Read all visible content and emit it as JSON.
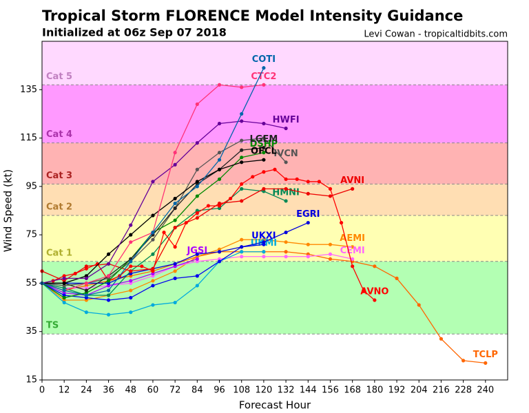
{
  "chart_data": {
    "type": "line",
    "title": "Tropical Storm FLORENCE Model Intensity Guidance",
    "subtitle": "Initialized at 06z Sep 07 2018",
    "credit": "Levi Cowan - tropicaltidbits.com",
    "x_label": "Forecast Hour",
    "y_label": "Wind Speed (kt)",
    "xlim": [
      0,
      252
    ],
    "ylim": [
      15,
      155
    ],
    "xticks": [
      0,
      12,
      24,
      36,
      48,
      60,
      72,
      84,
      96,
      108,
      120,
      132,
      144,
      156,
      168,
      180,
      192,
      204,
      216,
      228,
      240
    ],
    "yticks": [
      15,
      35,
      55,
      75,
      95,
      115,
      135
    ],
    "bands": [
      {
        "name": "TS",
        "min": 34,
        "max": 64,
        "color": "#b3ffb3",
        "label_color": "#33aa33"
      },
      {
        "name": "Cat 1",
        "min": 64,
        "max": 83,
        "color": "#ffffb3",
        "label_color": "#b0b030"
      },
      {
        "name": "Cat 2",
        "min": 83,
        "max": 96,
        "color": "#ffdeb3",
        "label_color": "#b07a30"
      },
      {
        "name": "Cat 3",
        "min": 96,
        "max": 113,
        "color": "#ffb3b3",
        "label_color": "#aa2222"
      },
      {
        "name": "Cat 4",
        "min": 113,
        "max": 137,
        "color": "#ff99ff",
        "label_color": "#aa33aa"
      },
      {
        "name": "Cat 5",
        "min": 137,
        "color": "#ffd9ff",
        "label_color": "#c080c0"
      }
    ],
    "series": [
      {
        "name": "TCLP",
        "color": "#ff6600",
        "x": [
          0,
          12,
          24,
          36,
          48,
          60,
          72,
          84,
          96,
          108,
          120,
          132,
          144,
          156,
          168,
          180,
          192,
          204,
          216,
          228,
          240
        ],
        "values": [
          55,
          52,
          54,
          56,
          58,
          60,
          63,
          66,
          68,
          68,
          68,
          68,
          67,
          65,
          64,
          62,
          57,
          46,
          32,
          23,
          22
        ]
      },
      {
        "name": "AEMI",
        "color": "#ff8800",
        "x": [
          0,
          12,
          24,
          36,
          48,
          60,
          72,
          84,
          96,
          108,
          120,
          132,
          144,
          156,
          168
        ],
        "values": [
          55,
          48,
          48,
          50,
          52,
          56,
          60,
          66,
          69,
          73,
          73,
          72,
          71,
          71,
          70
        ]
      },
      {
        "name": "CEMI",
        "color": "#ff66ff",
        "x": [
          0,
          12,
          24,
          36,
          48,
          60,
          72,
          84,
          96,
          108,
          120,
          132,
          144,
          156,
          168
        ],
        "values": [
          55,
          53,
          53,
          54,
          55,
          58,
          62,
          64,
          65,
          66,
          66,
          66,
          66,
          67,
          65
        ]
      },
      {
        "name": "JGSI",
        "color": "#aa00ff",
        "x": [
          0,
          12,
          24,
          36,
          48,
          60,
          72,
          84
        ],
        "values": [
          55,
          51,
          50,
          54,
          56,
          59,
          62,
          65
        ]
      },
      {
        "name": "UKMI",
        "color": "#00aadd",
        "x": [
          0,
          12,
          24,
          36,
          48,
          60,
          72,
          84,
          96,
          108,
          120
        ],
        "values": [
          55,
          47,
          43,
          42,
          43,
          46,
          47,
          54,
          64,
          68,
          68
        ]
      },
      {
        "name": "UKXI",
        "color": "#0000ee",
        "x": [
          0,
          12,
          24,
          36,
          48,
          60,
          72,
          84,
          96,
          108,
          120
        ],
        "values": [
          55,
          50,
          49,
          48,
          49,
          54,
          57,
          58,
          64,
          70,
          71
        ]
      },
      {
        "name": "EGRI",
        "color": "#0000dd",
        "x": [
          0,
          12,
          24,
          36,
          48,
          60,
          72,
          84,
          96,
          108,
          120,
          132,
          144
        ],
        "values": [
          55,
          55,
          55,
          55,
          59,
          61,
          63,
          67,
          68,
          70,
          72,
          76,
          80
        ]
      },
      {
        "name": "HMNI",
        "color": "#008855",
        "x": [
          0,
          12,
          24,
          36,
          48,
          60,
          72,
          84,
          96,
          108,
          120,
          132
        ],
        "values": [
          55,
          53,
          50,
          50,
          60,
          67,
          78,
          85,
          86,
          94,
          93,
          89
        ]
      },
      {
        "name": "AVNO",
        "color": "#ff0000",
        "x": [
          0,
          6,
          12,
          18,
          24,
          30,
          36,
          42,
          48,
          54,
          60,
          66,
          72,
          78,
          84,
          90,
          96,
          102,
          108,
          114,
          120,
          126,
          132,
          138,
          144,
          150,
          156,
          162,
          168,
          174,
          180
        ],
        "values": [
          55,
          56,
          58,
          59,
          61,
          63,
          56,
          58,
          62,
          62,
          60,
          76,
          70,
          80,
          84,
          87,
          87,
          90,
          96,
          99,
          101,
          102,
          98,
          98,
          97,
          97,
          94,
          80,
          62,
          52,
          48
        ]
      },
      {
        "name": "AVNI",
        "color": "#ee0000",
        "x": [
          0,
          12,
          24,
          36,
          48,
          60,
          72,
          84,
          96,
          108,
          120,
          132,
          144,
          156,
          168
        ],
        "values": [
          60,
          56,
          62,
          63,
          60,
          61,
          78,
          82,
          88,
          89,
          94,
          94,
          92,
          91,
          94
        ]
      },
      {
        "name": "IVCN",
        "color": "#555555",
        "x": [
          0,
          12,
          24,
          36,
          48,
          60,
          72,
          84,
          96,
          108,
          120,
          132
        ],
        "values": [
          55,
          54,
          55,
          57,
          64,
          73,
          86,
          102,
          109,
          114,
          115,
          105
        ]
      },
      {
        "name": "DSHP",
        "color": "#008800",
        "x": [
          0,
          12,
          24,
          36,
          48,
          60,
          72,
          84,
          96,
          108,
          120
        ],
        "values": [
          55,
          49,
          51,
          56,
          65,
          76,
          81,
          91,
          98,
          107,
          109
        ]
      },
      {
        "name": "LGEM",
        "color": "#222222",
        "x": [
          0,
          12,
          24,
          36,
          48,
          60,
          72,
          84,
          96,
          108,
          120
        ],
        "values": [
          55,
          55,
          52,
          58,
          65,
          75,
          86,
          96,
          102,
          110,
          111
        ]
      },
      {
        "name": "OFCL",
        "color": "#000000",
        "x": [
          0,
          12,
          24,
          36,
          48,
          60,
          72,
          84,
          96,
          108,
          120
        ],
        "values": [
          55,
          55,
          58,
          67,
          75,
          83,
          90,
          97,
          102,
          105,
          106
        ]
      },
      {
        "name": "HWFI",
        "color": "#660099",
        "x": [
          0,
          12,
          24,
          36,
          48,
          60,
          72,
          84,
          96,
          108,
          120,
          132
        ],
        "values": [
          55,
          57,
          57,
          63,
          79,
          97,
          104,
          113,
          121,
          122,
          121,
          119
        ]
      },
      {
        "name": "CTC2",
        "color": "#ff3377",
        "x": [
          0,
          12,
          24,
          36,
          48,
          60,
          72,
          84,
          96,
          108,
          120
        ],
        "values": [
          55,
          52,
          55,
          58,
          72,
          76,
          109,
          129,
          137,
          136,
          137
        ]
      },
      {
        "name": "COTI",
        "color": "#0066aa",
        "x": [
          0,
          12,
          24,
          36,
          48,
          60,
          72,
          84,
          96,
          108,
          120
        ],
        "values": [
          55,
          52,
          50,
          52,
          64,
          76,
          88,
          95,
          106,
          125,
          144
        ]
      }
    ]
  }
}
